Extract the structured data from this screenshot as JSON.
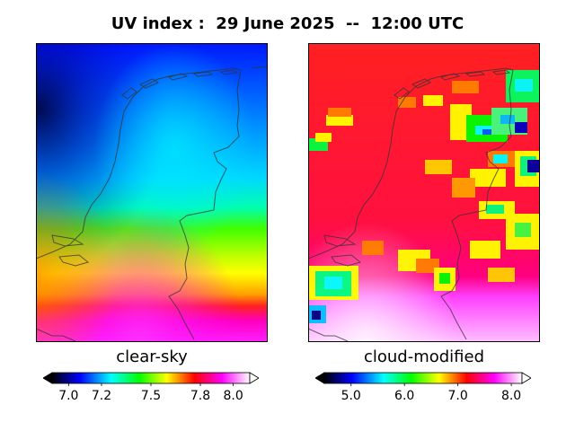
{
  "title": "UV index :  29 June 2025  --  12:00 UTC",
  "panels": [
    {
      "label": "clear-sky",
      "colorbar": {
        "ticks": [
          "7.0",
          "7.2",
          "7.5",
          "7.8",
          "8.0"
        ],
        "min": 6.9,
        "max": 8.1,
        "values": [
          7.0,
          7.2,
          7.5,
          7.8,
          8.0
        ],
        "extend": "both"
      }
    },
    {
      "label": "cloud-modified",
      "colorbar": {
        "ticks": [
          "5.0",
          "6.0",
          "7.0",
          "8.0"
        ],
        "min": 4.5,
        "max": 8.2,
        "values": [
          5.0,
          6.0,
          7.0,
          8.0
        ],
        "extend": "both"
      }
    }
  ],
  "colormap": [
    "#000000",
    "#0000ff",
    "#00ffff",
    "#00ff00",
    "#ffff00",
    "#ff0000",
    "#ff00ff",
    "#ffffff"
  ]
}
